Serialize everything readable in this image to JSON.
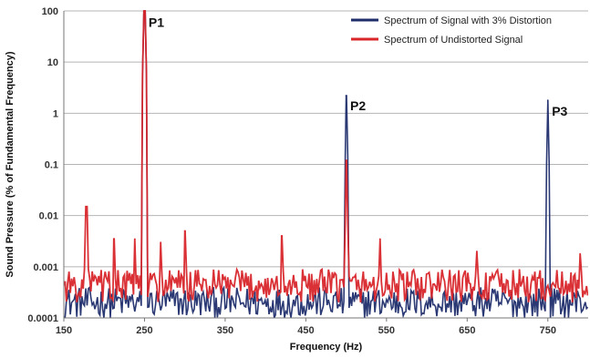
{
  "chart_data": {
    "type": "line",
    "xlabel": "Frequency (Hz)",
    "ylabel": "Sound Pressure (% of Fundamental Frequency)",
    "xlim": [
      150,
      800
    ],
    "ylim": [
      0.0001,
      100
    ],
    "y_scale": "log",
    "x_ticks": [
      150,
      250,
      350,
      450,
      550,
      650,
      750
    ],
    "x_tick_labels": [
      "150",
      "250",
      "350",
      "450",
      "550",
      "650",
      "750"
    ],
    "y_ticks": [
      0.0001,
      0.001,
      0.01,
      0.1,
      1,
      10,
      100
    ],
    "y_tick_labels": [
      "0.0001",
      "0.001",
      "0.01",
      "0.1",
      "1",
      "10",
      "100"
    ],
    "grid": "horizontal",
    "legend_position": "top-right",
    "series": [
      {
        "name": "Spectrum of Signal with 3% Distortion",
        "color": "#1f2d6b",
        "peaks": [
          {
            "x": 250,
            "y": 100
          },
          {
            "x": 500,
            "y": 2.2
          },
          {
            "x": 750,
            "y": 1.8
          }
        ],
        "noise_floor": [
          0.0001,
          0.0004
        ]
      },
      {
        "name": "Spectrum of Undistorted Signal",
        "color": "#d8262b",
        "peaks": [
          {
            "x": 178,
            "y": 0.015
          },
          {
            "x": 212,
            "y": 0.0035
          },
          {
            "x": 238,
            "y": 0.0035
          },
          {
            "x": 250,
            "y": 100
          },
          {
            "x": 270,
            "y": 0.003
          },
          {
            "x": 300,
            "y": 0.005
          },
          {
            "x": 420,
            "y": 0.004
          },
          {
            "x": 500,
            "y": 0.12
          },
          {
            "x": 542,
            "y": 0.0035
          },
          {
            "x": 662,
            "y": 0.002
          },
          {
            "x": 790,
            "y": 0.0018
          }
        ],
        "noise_floor": [
          0.0002,
          0.0009
        ]
      }
    ],
    "annotations": [
      {
        "text": "P1",
        "x": 255,
        "y": 60
      },
      {
        "text": "P2",
        "x": 505,
        "y": 1.4
      },
      {
        "text": "P3",
        "x": 755,
        "y": 1.1
      }
    ]
  }
}
